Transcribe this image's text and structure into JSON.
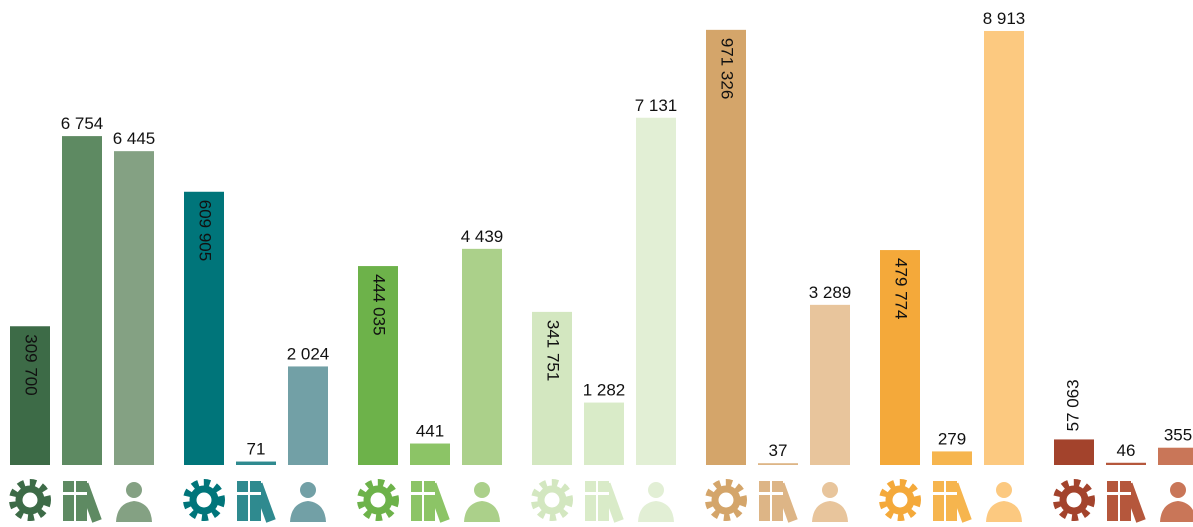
{
  "chart_data": {
    "type": "bar",
    "ylim": [
      0,
      1000000
    ],
    "y2lim": [
      0,
      9200
    ],
    "series": [
      {
        "axis": "y",
        "colors": [
          "#3d6b47",
          "#00757a",
          "#6db24a",
          "#d3e7c0",
          "#d4a56a",
          "#f4a93a",
          "#a3432c"
        ],
        "values": [
          309700,
          609905,
          444035,
          341751,
          971326,
          479774,
          57063
        ],
        "value_labels": [
          "309 700",
          "609 905",
          "444 035",
          "341 751",
          "971 326",
          "479 774",
          "57 063"
        ]
      },
      {
        "axis": "y2",
        "colors": [
          "#5e8a62",
          "#2f8a8f",
          "#8cc466",
          "#d9ebc8",
          "#ddb586",
          "#f6b54e",
          "#b5573c"
        ],
        "values": [
          6754,
          71,
          441,
          1282,
          37,
          279,
          46
        ],
        "value_labels": [
          "6 754",
          "71",
          "441",
          "1 282",
          "37",
          "279",
          "46"
        ]
      },
      {
        "axis": "y2",
        "colors": [
          "#84a183",
          "#72a0a6",
          "#abd08a",
          "#e2efd5",
          "#e8c59c",
          "#fcc980",
          "#c97658"
        ],
        "values": [
          6445,
          2024,
          4439,
          7131,
          3289,
          8913,
          355
        ],
        "value_labels": [
          "6 445",
          "2 024",
          "4 439",
          "7 131",
          "3 289",
          "8 913",
          "355"
        ]
      }
    ]
  }
}
